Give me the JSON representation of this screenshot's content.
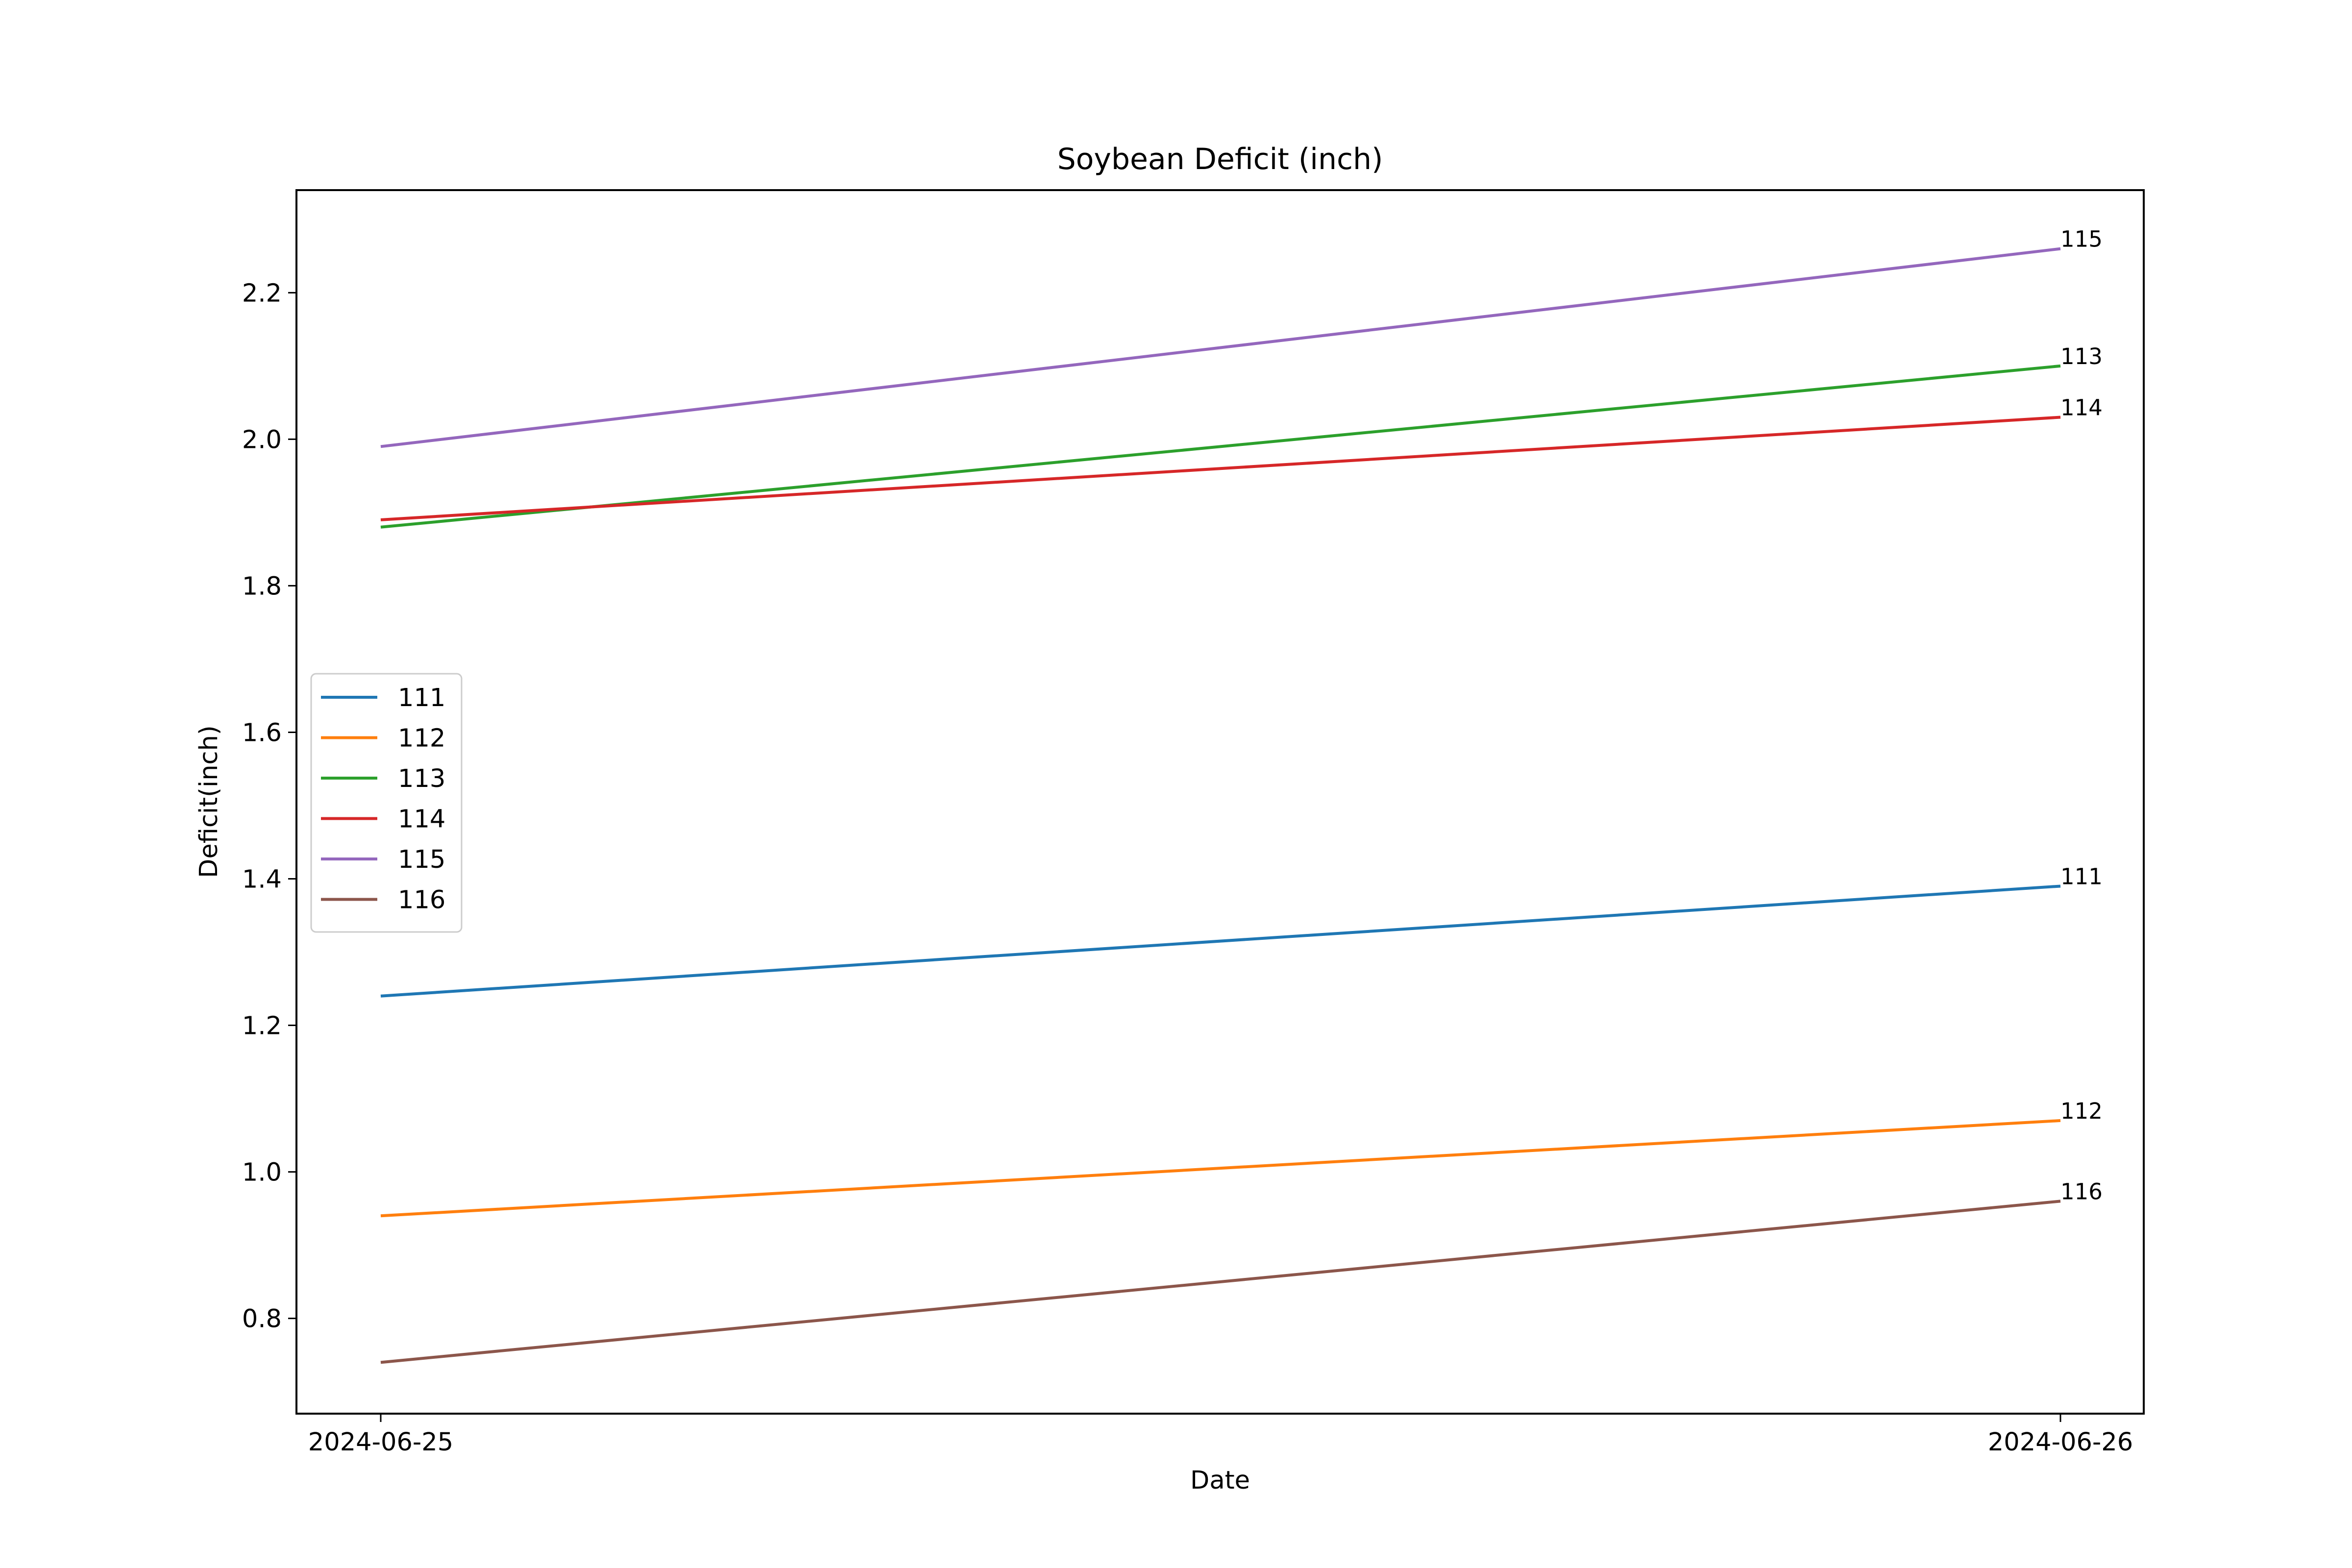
{
  "chart_data": {
    "type": "line",
    "title": "Soybean Deficit (inch)",
    "xlabel": "Date",
    "ylabel": "Deficit(inch)",
    "x": [
      "2024-06-25",
      "2024-06-26"
    ],
    "xlim": [
      "2024-06-25",
      "2024-06-26"
    ],
    "ylim": [
      0.67,
      2.34
    ],
    "yticks": [
      0.8,
      1.0,
      1.2,
      1.4,
      1.6,
      1.8,
      2.0,
      2.2
    ],
    "ytick_labels": [
      "0.8",
      "1.0",
      "1.2",
      "1.4",
      "1.6",
      "1.8",
      "2.0",
      "2.2"
    ],
    "grid": false,
    "legend_position": "center-left",
    "series": [
      {
        "name": "111",
        "color": "#1f77b4",
        "values": [
          1.24,
          1.39
        ]
      },
      {
        "name": "112",
        "color": "#ff7f0e",
        "values": [
          0.94,
          1.07
        ]
      },
      {
        "name": "113",
        "color": "#2ca02c",
        "values": [
          1.88,
          2.1
        ]
      },
      {
        "name": "114",
        "color": "#d62728",
        "values": [
          1.89,
          2.03
        ]
      },
      {
        "name": "115",
        "color": "#9467bd",
        "values": [
          1.99,
          2.26
        ]
      },
      {
        "name": "116",
        "color": "#8c564b",
        "values": [
          0.74,
          0.96
        ]
      }
    ]
  }
}
